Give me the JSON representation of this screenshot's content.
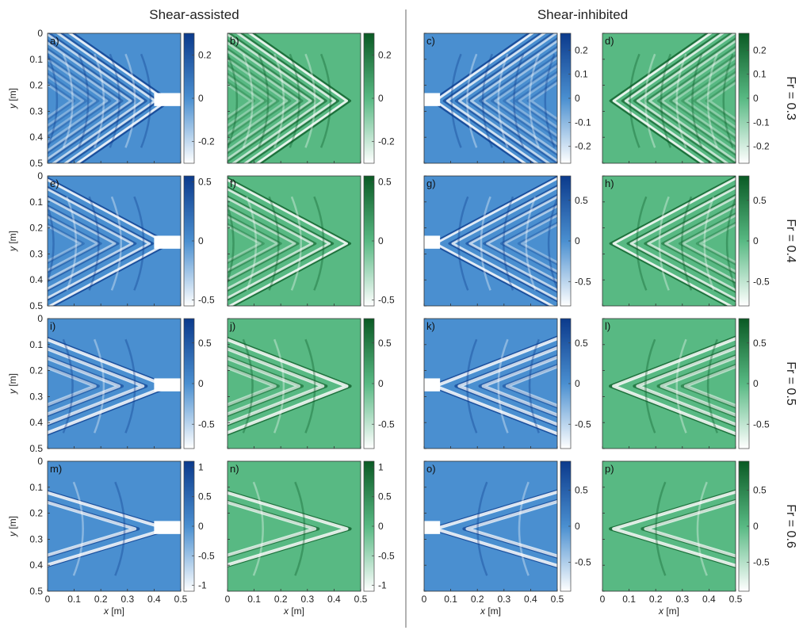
{
  "headers": {
    "left": "Shear-assisted",
    "right": "Shear-inhibited"
  },
  "row_labels": [
    "Fr = 0.3",
    "Fr = 0.4",
    "Fr = 0.5",
    "Fr = 0.6"
  ],
  "axis": {
    "xlabel_var": "x",
    "xlabel_unit": " [m]",
    "ylabel_var": "y",
    "ylabel_unit": " [m]",
    "x_ticks": [
      "0",
      "0.1",
      "0.2",
      "0.3",
      "0.4",
      "0.5"
    ],
    "y_ticks": [
      "0",
      "0.1",
      "0.2",
      "0.3",
      "0.4",
      "0.5"
    ]
  },
  "colors": {
    "blue_low": "#ffffff",
    "blue_mid": "#4a8fd0",
    "blue_high": "#0b3a8c",
    "green_low": "#ffffff",
    "green_mid": "#58b983",
    "green_high": "#0a5a24",
    "divider": "#999999"
  },
  "chart_data": [
    {
      "panel": "a)",
      "type": "heatmap",
      "colormap": "blue",
      "fr": 0.3,
      "group": "Shear-assisted",
      "xlim": [
        0,
        0.5
      ],
      "ylim": [
        0,
        0.5
      ],
      "clim": [
        -0.3,
        0.3
      ],
      "cbar_ticks": [
        "0.2",
        "0",
        "-0.2"
      ],
      "cbar_vals": [
        0.2,
        0,
        -0.2
      ]
    },
    {
      "panel": "b)",
      "type": "heatmap",
      "colormap": "green",
      "fr": 0.3,
      "group": "Shear-assisted",
      "xlim": [
        0,
        0.5
      ],
      "ylim": [
        0,
        0.5
      ],
      "clim": [
        -0.3,
        0.3
      ],
      "cbar_ticks": [
        "0.2",
        "0",
        "-0.2"
      ],
      "cbar_vals": [
        0.2,
        0,
        -0.2
      ]
    },
    {
      "panel": "c)",
      "type": "heatmap",
      "colormap": "blue",
      "fr": 0.3,
      "group": "Shear-inhibited",
      "xlim": [
        0,
        0.5
      ],
      "ylim": [
        0,
        0.5
      ],
      "clim": [
        -0.27,
        0.27
      ],
      "cbar_ticks": [
        "0.2",
        "0.1",
        "0",
        "-0.1",
        "-0.2"
      ],
      "cbar_vals": [
        0.2,
        0.1,
        0,
        -0.1,
        -0.2
      ]
    },
    {
      "panel": "d)",
      "type": "heatmap",
      "colormap": "green",
      "fr": 0.3,
      "group": "Shear-inhibited",
      "xlim": [
        0,
        0.5
      ],
      "ylim": [
        0,
        0.5
      ],
      "clim": [
        -0.27,
        0.27
      ],
      "cbar_ticks": [
        "0.2",
        "0.1",
        "0",
        "-0.1",
        "-0.2"
      ],
      "cbar_vals": [
        0.2,
        0.1,
        0,
        -0.1,
        -0.2
      ]
    },
    {
      "panel": "e)",
      "type": "heatmap",
      "colormap": "blue",
      "fr": 0.4,
      "group": "Shear-assisted",
      "xlim": [
        0,
        0.5
      ],
      "ylim": [
        0,
        0.5
      ],
      "clim": [
        -0.55,
        0.55
      ],
      "cbar_ticks": [
        "0.5",
        "0",
        "-0.5"
      ],
      "cbar_vals": [
        0.5,
        0,
        -0.5
      ]
    },
    {
      "panel": "f)",
      "type": "heatmap",
      "colormap": "green",
      "fr": 0.4,
      "group": "Shear-assisted",
      "xlim": [
        0,
        0.5
      ],
      "ylim": [
        0,
        0.5
      ],
      "clim": [
        -0.55,
        0.55
      ],
      "cbar_ticks": [
        "0.5",
        "0",
        "-0.5"
      ],
      "cbar_vals": [
        0.5,
        0,
        -0.5
      ]
    },
    {
      "panel": "g)",
      "type": "heatmap",
      "colormap": "blue",
      "fr": 0.4,
      "group": "Shear-inhibited",
      "xlim": [
        0,
        0.5
      ],
      "ylim": [
        0,
        0.5
      ],
      "clim": [
        -0.8,
        0.8
      ],
      "cbar_ticks": [
        "0.5",
        "0",
        "-0.5"
      ],
      "cbar_vals": [
        0.5,
        0,
        -0.5
      ]
    },
    {
      "panel": "h)",
      "type": "heatmap",
      "colormap": "green",
      "fr": 0.4,
      "group": "Shear-inhibited",
      "xlim": [
        0,
        0.5
      ],
      "ylim": [
        0,
        0.5
      ],
      "clim": [
        -0.8,
        0.8
      ],
      "cbar_ticks": [
        "0.5",
        "0",
        "-0.5"
      ],
      "cbar_vals": [
        0.5,
        0,
        -0.5
      ]
    },
    {
      "panel": "i)",
      "type": "heatmap",
      "colormap": "blue",
      "fr": 0.5,
      "group": "Shear-assisted",
      "xlim": [
        0,
        0.5
      ],
      "ylim": [
        0,
        0.5
      ],
      "clim": [
        -0.8,
        0.8
      ],
      "cbar_ticks": [
        "0.5",
        "0",
        "-0.5"
      ],
      "cbar_vals": [
        0.5,
        0,
        -0.5
      ]
    },
    {
      "panel": "j)",
      "type": "heatmap",
      "colormap": "green",
      "fr": 0.5,
      "group": "Shear-assisted",
      "xlim": [
        0,
        0.5
      ],
      "ylim": [
        0,
        0.5
      ],
      "clim": [
        -0.8,
        0.8
      ],
      "cbar_ticks": [
        "0.5",
        "0",
        "-0.5"
      ],
      "cbar_vals": [
        0.5,
        0,
        -0.5
      ]
    },
    {
      "panel": "k)",
      "type": "heatmap",
      "colormap": "blue",
      "fr": 0.5,
      "group": "Shear-inhibited",
      "xlim": [
        0,
        0.5
      ],
      "ylim": [
        0,
        0.5
      ],
      "clim": [
        -0.8,
        0.8
      ],
      "cbar_ticks": [
        "0.5",
        "0",
        "-0.5"
      ],
      "cbar_vals": [
        0.5,
        0,
        -0.5
      ]
    },
    {
      "panel": "l)",
      "type": "heatmap",
      "colormap": "green",
      "fr": 0.5,
      "group": "Shear-inhibited",
      "xlim": [
        0,
        0.5
      ],
      "ylim": [
        0,
        0.5
      ],
      "clim": [
        -0.8,
        0.8
      ],
      "cbar_ticks": [
        "0.5",
        "0",
        "-0.5"
      ],
      "cbar_vals": [
        0.5,
        0,
        -0.5
      ]
    },
    {
      "panel": "m)",
      "type": "heatmap",
      "colormap": "blue",
      "fr": 0.6,
      "group": "Shear-assisted",
      "xlim": [
        0,
        0.5
      ],
      "ylim": [
        0,
        0.5
      ],
      "clim": [
        -1.1,
        1.1
      ],
      "cbar_ticks": [
        "1",
        "0.5",
        "0",
        "-0.5",
        "-1"
      ],
      "cbar_vals": [
        1,
        0.5,
        0,
        -0.5,
        -1
      ]
    },
    {
      "panel": "n)",
      "type": "heatmap",
      "colormap": "green",
      "fr": 0.6,
      "group": "Shear-assisted",
      "xlim": [
        0,
        0.5
      ],
      "ylim": [
        0,
        0.5
      ],
      "clim": [
        -1.1,
        1.1
      ],
      "cbar_ticks": [
        "1",
        "0.5",
        "0",
        "-0.5",
        "-1"
      ],
      "cbar_vals": [
        1,
        0.5,
        0,
        -0.5,
        -1
      ]
    },
    {
      "panel": "o)",
      "type": "heatmap",
      "colormap": "blue",
      "fr": 0.6,
      "group": "Shear-inhibited",
      "xlim": [
        0,
        0.5
      ],
      "ylim": [
        0,
        0.5
      ],
      "clim": [
        -0.9,
        0.9
      ],
      "cbar_ticks": [
        "0.5",
        "0",
        "-0.5"
      ],
      "cbar_vals": [
        0.5,
        0,
        -0.5
      ]
    },
    {
      "panel": "p)",
      "type": "heatmap",
      "colormap": "green",
      "fr": 0.6,
      "group": "Shear-inhibited",
      "xlim": [
        0,
        0.5
      ],
      "ylim": [
        0,
        0.5
      ],
      "clim": [
        -0.9,
        0.9
      ],
      "cbar_ticks": [
        "0.5",
        "0",
        "-0.5"
      ],
      "cbar_vals": [
        0.5,
        0,
        -0.5
      ]
    }
  ]
}
